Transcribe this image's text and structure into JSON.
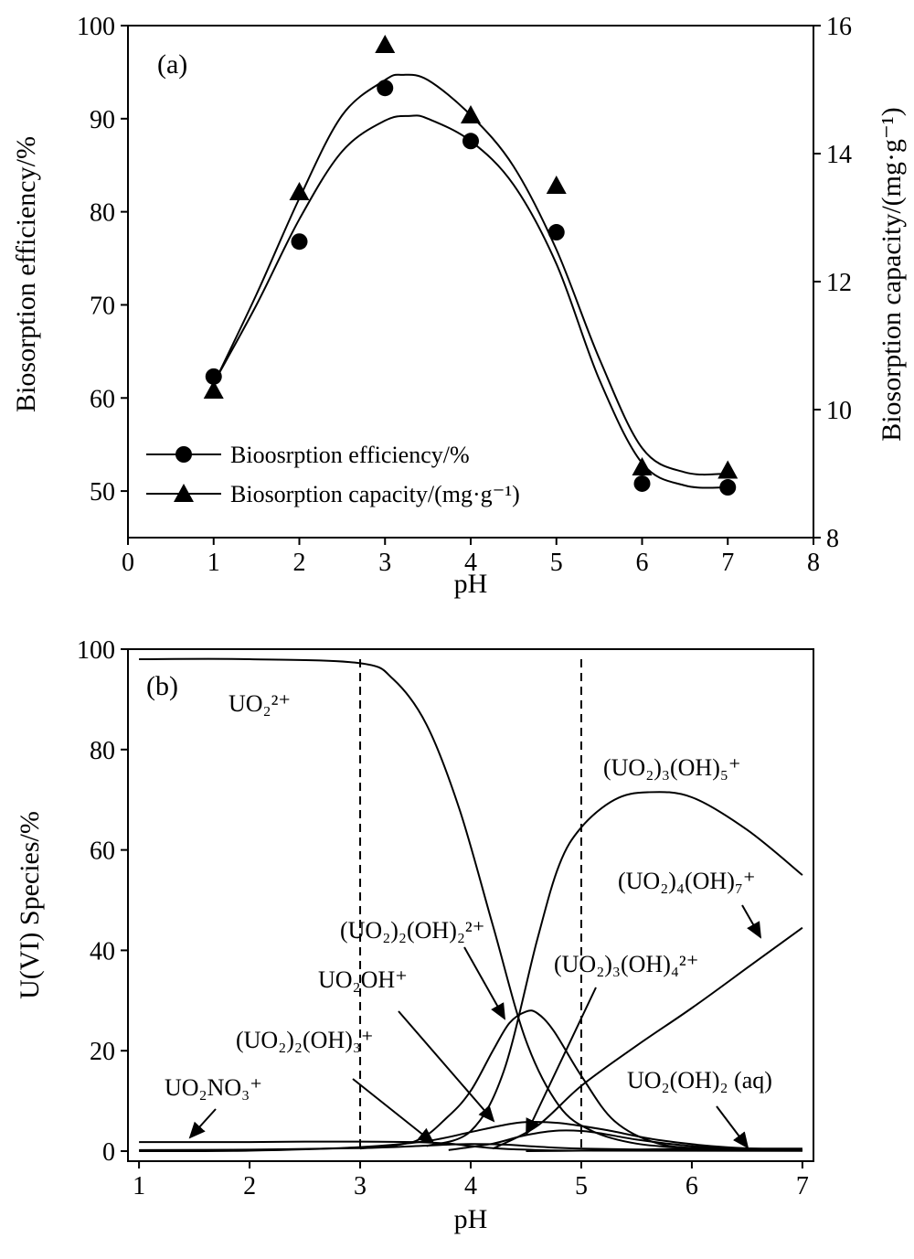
{
  "chart_data": [
    {
      "type": "line",
      "panel": "(a)",
      "xlabel": "pH",
      "ylabel": "Biosorption efficiency/%",
      "y2label": "Biosorption capacity/(mg·g⁻¹)",
      "xlim": [
        0,
        8
      ],
      "ylim": [
        45,
        100
      ],
      "y2lim": [
        8,
        16
      ],
      "xticks": [
        0,
        1,
        2,
        3,
        4,
        5,
        6,
        7,
        8
      ],
      "yticks": [
        50,
        60,
        70,
        80,
        90,
        100
      ],
      "y2ticks": [
        8,
        10,
        12,
        14,
        16
      ],
      "legend_position": "bottom-left",
      "series": [
        {
          "name": "Bioosrption efficiency/%",
          "marker": "circle",
          "axis": "left",
          "x": [
            1,
            2,
            3,
            4,
            5,
            6,
            7
          ],
          "y": [
            62.3,
            76.8,
            93.3,
            87.6,
            77.8,
            50.8,
            50.4
          ],
          "fit_x": [
            1.0,
            1.5,
            2.0,
            2.5,
            3.0,
            3.3,
            3.5,
            4.0,
            4.5,
            5.0,
            5.5,
            6.0,
            6.5,
            7.0
          ],
          "fit_y": [
            61.6,
            70.0,
            79.2,
            86.5,
            89.8,
            90.3,
            90.0,
            87.6,
            82.9,
            74.4,
            62.0,
            53.0,
            50.6,
            50.4
          ]
        },
        {
          "name": "Biosorption capacity/(mg·g⁻¹)",
          "marker": "triangle",
          "axis": "right",
          "x": [
            1,
            2,
            3,
            4,
            5,
            6,
            7
          ],
          "y": [
            10.3,
            13.4,
            15.7,
            14.6,
            13.5,
            9.1,
            9.05
          ],
          "fit_x": [
            1.0,
            1.5,
            2.0,
            2.5,
            3.0,
            3.2,
            3.5,
            4.0,
            4.5,
            5.0,
            5.5,
            6.0,
            6.5,
            7.0
          ],
          "fit_y": [
            10.4,
            11.8,
            13.3,
            14.6,
            15.15,
            15.23,
            15.15,
            14.6,
            13.8,
            12.5,
            10.8,
            9.4,
            9.02,
            9.0
          ]
        }
      ]
    },
    {
      "type": "line",
      "panel": "(b)",
      "xlabel": "pH",
      "ylabel": "U(VI) Species/%",
      "xlim": [
        0.9,
        7.1
      ],
      "ylim": [
        -2,
        100
      ],
      "xticks": [
        1,
        2,
        3,
        4,
        5,
        6,
        7
      ],
      "yticks": [
        0,
        20,
        40,
        60,
        80,
        100
      ],
      "vlines": [
        3,
        5
      ],
      "series": [
        {
          "name": "UO₂²⁺",
          "x": [
            1,
            2,
            3,
            3.3,
            3.6,
            3.9,
            4.2,
            4.5,
            4.8,
            5.1,
            5.5,
            6,
            6.5,
            7
          ],
          "y": [
            98,
            98,
            97.2,
            94,
            85,
            68,
            45,
            22,
            9,
            4,
            1.5,
            0.6,
            0.3,
            0.2
          ]
        },
        {
          "name": "(UO₂)₃(OH)₅⁺",
          "x": [
            3.6,
            4.0,
            4.3,
            4.6,
            4.8,
            5.0,
            5.3,
            5.6,
            6.0,
            6.5,
            7.0
          ],
          "y": [
            1,
            4,
            16,
            42,
            57,
            64.5,
            70,
            71.5,
            70.5,
            64,
            55
          ]
        },
        {
          "name": "(UO₂)₄(OH)₇⁺",
          "x": [
            4.2,
            4.6,
            5.0,
            5.5,
            6.0,
            6.5,
            7.0
          ],
          "y": [
            0.5,
            5,
            13,
            21,
            28.5,
            36.5,
            44.5
          ]
        },
        {
          "name": "(UO₂)₂(OH)₂²⁺",
          "x": [
            3.0,
            3.5,
            3.8,
            4.0,
            4.2,
            4.35,
            4.5,
            4.6,
            4.75,
            5.0,
            5.3,
            5.7,
            6.2,
            7.0
          ],
          "y": [
            0.5,
            2,
            7,
            12,
            20,
            25.5,
            27.8,
            27.5,
            24,
            15,
            6,
            1.5,
            0.5,
            0.2
          ]
        },
        {
          "name": "UO₂OH⁺",
          "x": [
            1,
            2,
            3,
            3.6,
            4.0,
            4.3,
            4.5,
            4.8,
            5.2,
            5.7,
            6.3,
            7.0
          ],
          "y": [
            0,
            0.1,
            0.8,
            2,
            3.8,
            5.2,
            5.8,
            5.6,
            4.3,
            2.2,
            0.8,
            0.2
          ]
        },
        {
          "name": "(UO₂)₃(OH)₄²⁺",
          "x": [
            3.8,
            4.2,
            4.5,
            4.8,
            5.1,
            5.5,
            6.0,
            6.5,
            7.0
          ],
          "y": [
            0.2,
            1.5,
            3.2,
            4.1,
            3.8,
            2.3,
            1.0,
            0.4,
            0.2
          ]
        },
        {
          "name": "(UO₂)₂(OH)₃⁺",
          "x": [
            1,
            2,
            3,
            3.5,
            3.8,
            4.0,
            4.3,
            4.6,
            5.0,
            6.0,
            7.0
          ],
          "y": [
            0.2,
            0.3,
            0.6,
            1.0,
            1.3,
            1.4,
            1.3,
            0.9,
            0.5,
            0.2,
            0.1
          ]
        },
        {
          "name": "UO₂NO₃⁺",
          "x": [
            1,
            2,
            2.5,
            3.0,
            3.5,
            3.8,
            4.0,
            4.2,
            4.5,
            5.0,
            7.0
          ],
          "y": [
            1.8,
            1.8,
            1.9,
            1.9,
            1.8,
            1.5,
            1.0,
            0.6,
            0.3,
            0.1,
            0.05
          ]
        },
        {
          "name": "UO₂(OH)₂ (aq)",
          "x": [
            4.5,
            5.0,
            5.5,
            6.0,
            6.5,
            7.0
          ],
          "y": [
            0,
            0.1,
            0.3,
            0.5,
            0.5,
            0.5
          ]
        }
      ]
    }
  ]
}
